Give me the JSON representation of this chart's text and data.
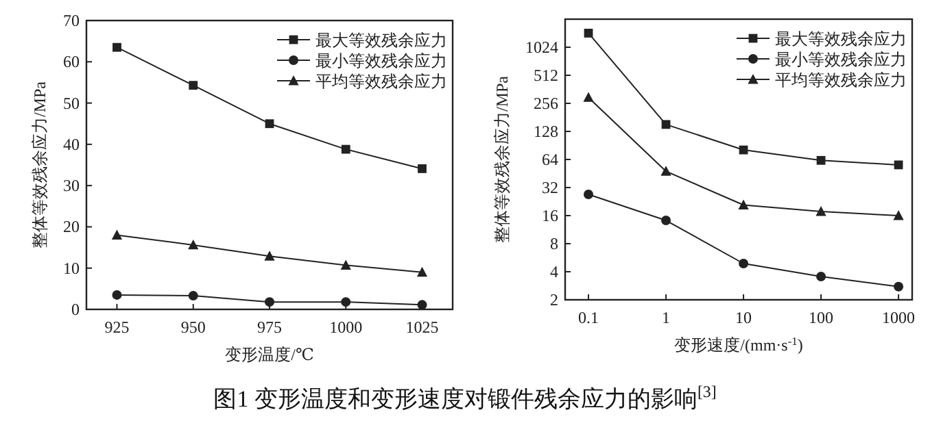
{
  "chart_data": [
    {
      "type": "line",
      "xlabel": "变形温度/℃",
      "ylabel": "整体等效残余应力/MPa",
      "x": [
        925,
        950,
        975,
        1000,
        1025
      ],
      "xlim": [
        915,
        1035
      ],
      "xticks": [
        925,
        950,
        975,
        1000,
        1025
      ],
      "ylim": [
        0,
        70
      ],
      "yticks": [
        0,
        10,
        20,
        30,
        40,
        50,
        60,
        70
      ],
      "legend": "top right",
      "grid": false,
      "line_style": "solid",
      "series": [
        {
          "name": "最大等效残余应力",
          "color": "#222222",
          "marker": "square",
          "values": [
            63.5,
            54.3,
            45,
            38.8,
            34.1
          ]
        },
        {
          "name": "最小等效残余应力",
          "color": "#222222",
          "marker": "circle",
          "values": [
            3.5,
            3.3,
            1.8,
            1.8,
            1.1
          ]
        },
        {
          "name": "平均等效残余应力",
          "color": "#222222",
          "marker": "triangle",
          "values": [
            18,
            15.6,
            12.9,
            10.7,
            9.0
          ]
        }
      ],
      "annotations": [
        "图1  变形温度和变形速度对锻件残余应力的影响$^{[3]}$"
      ]
    },
    {
      "type": "line",
      "xlabel": "变形速度/(mm·s$^{-1}$)",
      "ylabel": "整体等效残余应力/MPa",
      "x": [
        0.1,
        1,
        10,
        100,
        1000
      ],
      "xlim": [
        0.05,
        1500
      ],
      "xticks": [
        0.1,
        1,
        10,
        100,
        1000
      ],
      "ylim": [
        2,
        2048
      ],
      "yticks": [
        2,
        4,
        8,
        16,
        32,
        64,
        128,
        256,
        512,
        1024
      ],
      "log": "xy",
      "legend": "top right",
      "grid": false,
      "line_style": "solid",
      "series": [
        {
          "name": "最大等效残余应力",
          "color": "#222222",
          "marker": "square",
          "values": [
            1450,
            152,
            81,
            62.6,
            56
          ]
        },
        {
          "name": "最小等效残余应力",
          "color": "#222222",
          "marker": "circle",
          "values": [
            27,
            14.2,
            4.9,
            3.55,
            2.77
          ]
        },
        {
          "name": "平均等效残余应力",
          "color": "#222222",
          "marker": "triangle",
          "values": [
            296,
            47.8,
            20.8,
            17.7,
            16
          ]
        }
      ]
    }
  ]
}
